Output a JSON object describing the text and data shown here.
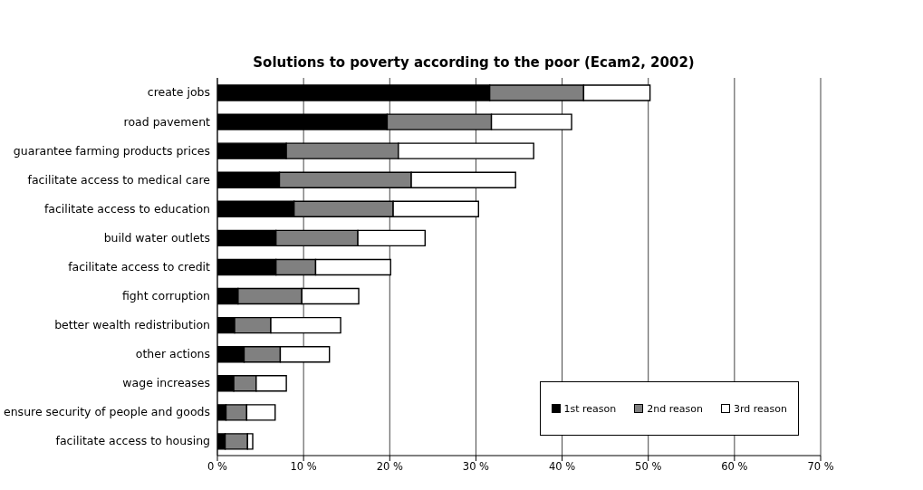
{
  "chart_data": {
    "type": "bar",
    "title": "Solutions to poverty according to the poor (Ecam2, 2002)",
    "orientation": "horizontal",
    "stacked": true,
    "categories": [
      "create jobs",
      "road pavement",
      "guarantee farming products prices",
      "facilitate access to medical care",
      "facilitate access to education",
      "build water outlets",
      "facilitate access to credit",
      "fight corruption",
      "better wealth redistribution",
      "other actions",
      "wage increases",
      "ensure security of people and goods",
      "facilitate access to housing"
    ],
    "series": [
      {
        "name": "1st reason",
        "color": "#000000",
        "values": [
          31.6,
          19.7,
          8.0,
          7.2,
          8.9,
          6.8,
          6.8,
          2.4,
          2.0,
          3.1,
          1.9,
          1.0,
          0.9
        ]
      },
      {
        "name": "2nd reason",
        "color": "#808080",
        "values": [
          10.9,
          12.1,
          13.0,
          15.3,
          11.5,
          9.5,
          4.6,
          7.4,
          4.2,
          4.2,
          2.6,
          2.4,
          2.6
        ]
      },
      {
        "name": "3rd reason",
        "color": "#ffffff",
        "values": [
          7.7,
          9.3,
          15.7,
          12.1,
          9.9,
          7.8,
          8.7,
          6.6,
          8.1,
          5.7,
          3.5,
          3.3,
          0.6
        ]
      }
    ],
    "xlim": [
      0,
      70
    ],
    "xticks": [
      {
        "value": 0,
        "label": "0 %"
      },
      {
        "value": 10,
        "label": "10 %"
      },
      {
        "value": 20,
        "label": "20 %"
      },
      {
        "value": 30,
        "label": "30 %"
      },
      {
        "value": 40,
        "label": "40 %"
      },
      {
        "value": 50,
        "label": "50 %"
      },
      {
        "value": 60,
        "label": "60 %"
      },
      {
        "value": 70,
        "label": "70 %"
      }
    ],
    "grid": "x",
    "legend": "bottom right"
  }
}
